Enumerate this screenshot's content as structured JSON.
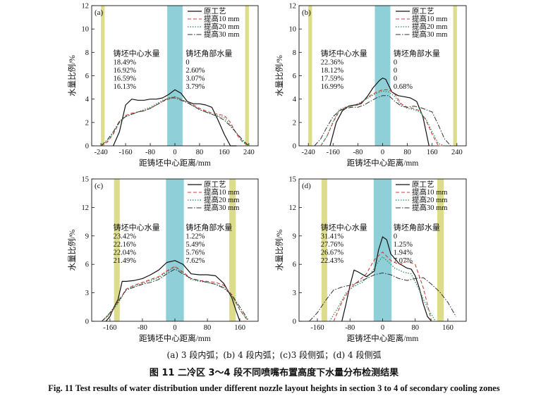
{
  "figure": {
    "subcaption": "(a) 3 段内弧；(b) 4 段内弧；(c)3 段侧弧；(d) 4 段侧弧",
    "caption_zh": "图 11    二冷区 3～4 段不同喷嘴布置高度下水量分布检测结果",
    "caption_en": "Fig. 11    Test results of water distribution under different nozzle layout heights in section 3 to 4 of secondary cooling zones"
  },
  "colors": {
    "yellow_band": "#dcdc8c",
    "cyan_band": "#8fd0d8",
    "s0": "#111111",
    "s1": "#d23c3c",
    "s2": "#2e8b57",
    "s3": "#333333"
  },
  "chart_data": [
    {
      "type": "line",
      "panel": "(a)",
      "xlabel": "距铸坯中心距离/mm",
      "ylabel": "水量比例/%",
      "xlim": [
        -270,
        270
      ],
      "ylim": [
        0,
        12
      ],
      "xticks": [
        -240,
        -160,
        -80,
        0,
        80,
        160,
        240
      ],
      "yticks": [
        0,
        2,
        4,
        6,
        8,
        10,
        12
      ],
      "bands": [
        {
          "x0": -240,
          "x1": -228,
          "color": "yellow"
        },
        {
          "x0": -25,
          "x1": 25,
          "color": "cyan"
        },
        {
          "x0": 228,
          "x1": 240,
          "color": "yellow"
        }
      ],
      "legend": [
        "原工艺",
        "提高10 mm",
        "提高20 mm",
        "提高30 mm"
      ],
      "annotation_center": {
        "title": "铸坯中心水量",
        "values": [
          "18.49%",
          "16.92%",
          "16.59%",
          "16.13%"
        ]
      },
      "annotation_corner": {
        "title": "铸坯角部水量",
        "values": [
          "0",
          "2.60%",
          "3.07%",
          "3.79%"
        ]
      },
      "series": [
        {
          "name": "原工艺",
          "x": [
            -200,
            -180,
            -160,
            -140,
            -120,
            -100,
            -80,
            -60,
            -40,
            -20,
            0,
            20,
            40,
            60,
            80,
            100,
            120,
            140,
            160,
            180,
            200
          ],
          "y": [
            0,
            1.2,
            3.5,
            4.0,
            3.9,
            3.9,
            4.0,
            4.0,
            4.1,
            4.4,
            4.8,
            4.5,
            3.8,
            3.6,
            3.6,
            3.5,
            3.3,
            2.2,
            1.0,
            0,
            0
          ]
        },
        {
          "name": "提高10 mm",
          "x": [
            -240,
            -220,
            -200,
            -180,
            -160,
            -140,
            -120,
            -100,
            -80,
            -60,
            -40,
            -20,
            0,
            20,
            40,
            60,
            80,
            100,
            120,
            140,
            160,
            180,
            200,
            220,
            240
          ],
          "y": [
            0,
            0.3,
            1.0,
            2.0,
            2.6,
            2.8,
            2.9,
            3.0,
            3.2,
            3.5,
            3.8,
            4.0,
            4.2,
            4.0,
            3.7,
            3.5,
            3.2,
            3.0,
            2.8,
            2.7,
            2.6,
            2.0,
            1.0,
            0.3,
            0
          ]
        },
        {
          "name": "提高20 mm",
          "x": [
            -240,
            -220,
            -200,
            -180,
            -160,
            -140,
            -120,
            -100,
            -80,
            -60,
            -40,
            -20,
            0,
            20,
            40,
            60,
            80,
            100,
            120,
            140,
            160,
            180,
            200,
            220,
            240
          ],
          "y": [
            0,
            0.4,
            1.1,
            2.0,
            2.5,
            2.7,
            2.9,
            3.1,
            3.3,
            3.6,
            3.9,
            4.1,
            4.2,
            4.0,
            3.7,
            3.4,
            3.1,
            2.9,
            2.7,
            2.6,
            2.4,
            1.8,
            1.1,
            0.4,
            0
          ]
        },
        {
          "name": "提高30 mm",
          "x": [
            -240,
            -220,
            -200,
            -180,
            -160,
            -140,
            -120,
            -100,
            -80,
            -60,
            -40,
            -20,
            0,
            20,
            40,
            60,
            80,
            100,
            120,
            140,
            160,
            180,
            200,
            220,
            240
          ],
          "y": [
            0,
            0.5,
            1.2,
            2.1,
            2.5,
            2.7,
            2.9,
            3.0,
            3.2,
            3.5,
            3.8,
            4.1,
            4.1,
            3.9,
            3.7,
            3.4,
            3.1,
            2.9,
            2.7,
            2.5,
            2.2,
            1.7,
            1.1,
            0.5,
            0
          ]
        }
      ]
    },
    {
      "type": "line",
      "panel": "(b)",
      "xlabel": "距铸坯中心距离/mm",
      "ylabel": "水量比例/%",
      "xlim": [
        -270,
        270
      ],
      "ylim": [
        0,
        12
      ],
      "xticks": [
        -240,
        -160,
        -80,
        0,
        80,
        160,
        240
      ],
      "yticks": [
        0,
        2,
        4,
        6,
        8,
        10,
        12
      ],
      "bands": [
        {
          "x0": -240,
          "x1": -228,
          "color": "yellow"
        },
        {
          "x0": -25,
          "x1": 25,
          "color": "cyan"
        },
        {
          "x0": 228,
          "x1": 240,
          "color": "yellow"
        }
      ],
      "legend": [
        "原工艺",
        "提高10 mm",
        "提高20 mm",
        "提高30 mm"
      ],
      "annotation_center": {
        "title": "铸坯中心水量",
        "values": [
          "22.36%",
          "18.12%",
          "17.59%",
          "16.99%"
        ]
      },
      "annotation_corner": {
        "title": "铸坯角部水量",
        "values": [
          "0",
          "0",
          "0",
          "0.68%"
        ]
      },
      "series": [
        {
          "name": "原工艺",
          "x": [
            -170,
            -150,
            -130,
            -110,
            -90,
            -70,
            -50,
            -30,
            -10,
            0,
            10,
            30,
            50,
            70,
            90,
            110,
            130,
            150
          ],
          "y": [
            0,
            2.0,
            3.0,
            3.4,
            3.5,
            3.6,
            4.2,
            5.0,
            5.6,
            5.8,
            5.7,
            4.6,
            4.3,
            4.2,
            4.1,
            3.8,
            2.5,
            0
          ]
        },
        {
          "name": "提高10 mm",
          "x": [
            -200,
            -180,
            -160,
            -140,
            -120,
            -100,
            -80,
            -60,
            -40,
            -20,
            0,
            20,
            40,
            60,
            80,
            100,
            120,
            140,
            160,
            180,
            200
          ],
          "y": [
            0,
            0.8,
            2.0,
            3.0,
            3.3,
            3.4,
            3.5,
            3.9,
            4.3,
            4.6,
            4.8,
            4.8,
            4.4,
            3.6,
            3.3,
            3.2,
            3.0,
            2.2,
            1.0,
            0,
            0
          ]
        },
        {
          "name": "提高20 mm",
          "x": [
            -200,
            -180,
            -160,
            -140,
            -120,
            -100,
            -80,
            -60,
            -40,
            -20,
            0,
            20,
            40,
            60,
            80,
            100,
            120,
            140,
            160,
            180,
            200
          ],
          "y": [
            0,
            0.8,
            2.1,
            3.1,
            3.3,
            3.4,
            3.6,
            3.9,
            4.2,
            4.5,
            4.7,
            4.6,
            4.2,
            3.5,
            3.2,
            3.1,
            2.9,
            2.3,
            1.2,
            0.2,
            0
          ]
        },
        {
          "name": "提高30 mm",
          "x": [
            -220,
            -200,
            -180,
            -160,
            -140,
            -120,
            -100,
            -80,
            -60,
            -40,
            -20,
            0,
            20,
            40,
            60,
            80,
            100,
            120,
            140,
            160,
            180,
            200,
            220
          ],
          "y": [
            0,
            0.6,
            1.6,
            2.5,
            3.0,
            3.2,
            3.3,
            3.3,
            3.5,
            3.8,
            4.1,
            4.3,
            4.3,
            3.8,
            3.4,
            3.3,
            3.4,
            3.3,
            3.1,
            2.9,
            1.8,
            0.6,
            0
          ]
        }
      ]
    },
    {
      "type": "line",
      "panel": "(c)",
      "xlabel": "距铸坯中心距离/mm",
      "ylabel": "水量比例/%",
      "xlim": [
        -205,
        205
      ],
      "ylim": [
        0,
        15
      ],
      "xticks": [
        -160,
        -80,
        0,
        80,
        160
      ],
      "yticks": [
        0,
        3,
        6,
        9,
        12,
        15
      ],
      "bands": [
        {
          "x0": -150,
          "x1": -136,
          "color": "yellow"
        },
        {
          "x0": -22,
          "x1": 22,
          "color": "cyan"
        },
        {
          "x0": 134,
          "x1": 150,
          "color": "yellow"
        }
      ],
      "legend": [
        "原工艺",
        "提高10 mm",
        "提高20 mm",
        "提高30 mm"
      ],
      "annotation_center": {
        "title": "铸坯中心水量",
        "values": [
          "23.42%",
          "22.16%",
          "22.04%",
          "21.49%"
        ]
      },
      "annotation_corner": {
        "title": "铸坯角部水量",
        "values": [
          "1.22%",
          "5.49%",
          "5.76%",
          "7.62%"
        ]
      },
      "series": [
        {
          "name": "原工艺",
          "x": [
            -170,
            -160,
            -150,
            -140,
            -130,
            -120,
            -100,
            -80,
            -60,
            -40,
            -20,
            0,
            20,
            40,
            60,
            80,
            100,
            120,
            140,
            150,
            160
          ],
          "y": [
            0,
            0.5,
            1.5,
            2.3,
            4.2,
            4.2,
            4.3,
            4.5,
            4.9,
            5.4,
            6.2,
            6.4,
            6.0,
            5.0,
            4.9,
            4.9,
            4.8,
            4.0,
            2.5,
            1.2,
            0
          ]
        },
        {
          "name": "提高10 mm",
          "x": [
            -180,
            -160,
            -140,
            -120,
            -100,
            -80,
            -60,
            -40,
            -20,
            0,
            20,
            40,
            60,
            80,
            100,
            120,
            140,
            160,
            180
          ],
          "y": [
            0,
            0.8,
            2.0,
            3.4,
            3.8,
            4.1,
            4.4,
            4.7,
            5.3,
            5.8,
            5.2,
            4.5,
            4.3,
            4.2,
            4.1,
            3.8,
            2.8,
            1.2,
            0
          ]
        },
        {
          "name": "提高20 mm",
          "x": [
            -180,
            -160,
            -140,
            -120,
            -100,
            -80,
            -60,
            -40,
            -20,
            0,
            20,
            40,
            60,
            80,
            100,
            120,
            140,
            160,
            180
          ],
          "y": [
            0,
            0.7,
            1.9,
            3.3,
            3.7,
            4.0,
            4.3,
            4.6,
            5.2,
            5.7,
            5.1,
            4.4,
            4.2,
            4.1,
            3.9,
            3.6,
            2.7,
            1.2,
            0.1
          ]
        },
        {
          "name": "提高30 mm",
          "x": [
            -180,
            -160,
            -140,
            -120,
            -100,
            -80,
            -60,
            -40,
            -20,
            0,
            20,
            40,
            60,
            80,
            100,
            120,
            140,
            160,
            180
          ],
          "y": [
            0,
            0.9,
            2.1,
            3.3,
            3.6,
            3.9,
            4.1,
            4.4,
            5.0,
            5.5,
            5.0,
            4.5,
            4.3,
            4.1,
            3.9,
            3.5,
            2.8,
            1.5,
            0.2
          ]
        }
      ]
    },
    {
      "type": "line",
      "panel": "(d)",
      "xlabel": "距铸坯中心距离/mm",
      "ylabel": "水量比例/%",
      "xlim": [
        -205,
        205
      ],
      "ylim": [
        0,
        15
      ],
      "xticks": [
        -160,
        -80,
        0,
        80,
        160
      ],
      "yticks": [
        0,
        3,
        6,
        9,
        12,
        15
      ],
      "bands": [
        {
          "x0": -150,
          "x1": -136,
          "color": "yellow"
        },
        {
          "x0": -22,
          "x1": 22,
          "color": "cyan"
        },
        {
          "x0": 134,
          "x1": 150,
          "color": "yellow"
        }
      ],
      "legend": [
        "原工艺",
        "提高10 mm",
        "提高20 mm",
        "提高30 mm"
      ],
      "annotation_center": {
        "title": "铸坯中心水量",
        "values": [
          "31.41%",
          "27.76%",
          "26.67%",
          "22.43%"
        ]
      },
      "annotation_corner": {
        "title": "铸坯角部水量",
        "values": [
          "0",
          "1.25%",
          "1.94%",
          "7.07%"
        ]
      },
      "series": [
        {
          "name": "原工艺",
          "x": [
            -100,
            -90,
            -80,
            -70,
            -60,
            -40,
            -20,
            -10,
            0,
            10,
            20,
            40,
            60,
            70,
            80,
            90,
            100,
            110,
            120
          ],
          "y": [
            0,
            1.8,
            3.8,
            5.4,
            5.2,
            4.7,
            5.3,
            7.5,
            8.9,
            8.6,
            7.1,
            6.1,
            5.6,
            5.5,
            4.8,
            3.5,
            1.8,
            0.5,
            0
          ]
        },
        {
          "name": "提高10 mm",
          "x": [
            -120,
            -100,
            -80,
            -60,
            -40,
            -20,
            0,
            20,
            40,
            60,
            80,
            100,
            120
          ],
          "y": [
            0,
            2.0,
            3.5,
            4.2,
            5.0,
            6.5,
            7.3,
            6.4,
            6.0,
            6.3,
            6.0,
            3.5,
            0
          ]
        },
        {
          "name": "提高20 mm",
          "x": [
            -130,
            -110,
            -90,
            -70,
            -50,
            -30,
            -10,
            0,
            10,
            30,
            50,
            70,
            90,
            110,
            130
          ],
          "y": [
            0,
            1.4,
            3.0,
            3.7,
            4.1,
            5.0,
            6.3,
            6.8,
            6.4,
            5.6,
            5.2,
            5.0,
            3.3,
            1.4,
            0
          ]
        },
        {
          "name": "提高30 mm",
          "x": [
            -180,
            -160,
            -140,
            -120,
            -100,
            -80,
            -60,
            -40,
            -20,
            0,
            20,
            40,
            60,
            80,
            100,
            120,
            140,
            160,
            180
          ],
          "y": [
            0,
            0.9,
            2.2,
            3.3,
            3.6,
            3.8,
            4.1,
            4.5,
            4.9,
            5.1,
            4.9,
            4.5,
            4.3,
            4.5,
            4.6,
            3.9,
            3.1,
            2.0,
            0.5
          ]
        }
      ]
    }
  ]
}
